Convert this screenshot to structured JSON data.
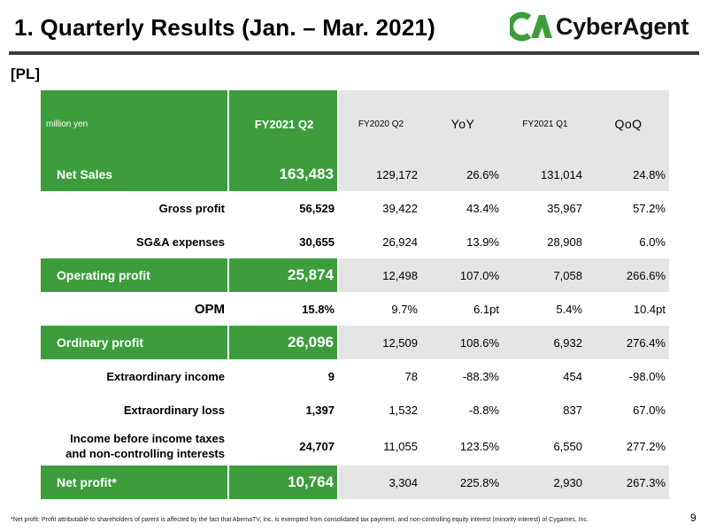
{
  "title": "1.  Quarterly Results (Jan. – Mar. 2021)",
  "logo": {
    "text": "CyberAgent",
    "color": "#3d9d3d"
  },
  "section": "[PL]",
  "table": {
    "unit": "million yen",
    "columns": [
      "FY2021 Q2",
      "FY2020 Q2",
      "YoY",
      "FY2021 Q1",
      "QoQ"
    ],
    "rows": {
      "net_sales": {
        "label": "Net Sales",
        "values": [
          "163,483",
          "129,172",
          "26.6%",
          "131,014",
          "24.8%"
        ]
      },
      "gross_profit": {
        "label": "Gross profit",
        "values": [
          "56,529",
          "39,422",
          "43.4%",
          "35,967",
          "57.2%"
        ]
      },
      "sga": {
        "label": "SG&A expenses",
        "values": [
          "30,655",
          "26,924",
          "13.9%",
          "28,908",
          "6.0%"
        ]
      },
      "operating_profit": {
        "label": "Operating profit",
        "values": [
          "25,874",
          "12,498",
          "107.0%",
          "7,058",
          "266.6%"
        ]
      },
      "opm": {
        "label": "OPM",
        "values": [
          "15.8%",
          "9.7%",
          "6.1pt",
          "5.4%",
          "10.4pt"
        ]
      },
      "ordinary_profit": {
        "label": "Ordinary profit",
        "values": [
          "26,096",
          "12,509",
          "108.6%",
          "6,932",
          "276.4%"
        ]
      },
      "extra_income": {
        "label": "Extraordinary income",
        "values": [
          "9",
          "78",
          "-88.3%",
          "454",
          "-98.0%"
        ]
      },
      "extra_loss": {
        "label": "Extraordinary loss",
        "values": [
          "1,397",
          "1,532",
          "-8.8%",
          "837",
          "67.0%"
        ]
      },
      "income_before_tax": {
        "label_line1": "Income before income taxes",
        "label_line2": "and non-controlling interests",
        "values": [
          "24,707",
          "11,055",
          "123.5%",
          "6,550",
          "277.2%"
        ]
      },
      "net_profit": {
        "label": "Net profit*",
        "values": [
          "10,764",
          "3,304",
          "225.8%",
          "2,930",
          "267.3%"
        ]
      }
    }
  },
  "colors": {
    "green": "#3d9d3d",
    "gray": "#e5e5e5"
  },
  "footnote": "*Net profit: Profit attributable to shareholders of parent is affected by the fact that AbemaTV, Inc. is exempted from consolidated tax payment, and non-controlling equity interest (minority interest) of Cygames, Inc.",
  "page_number": "9"
}
